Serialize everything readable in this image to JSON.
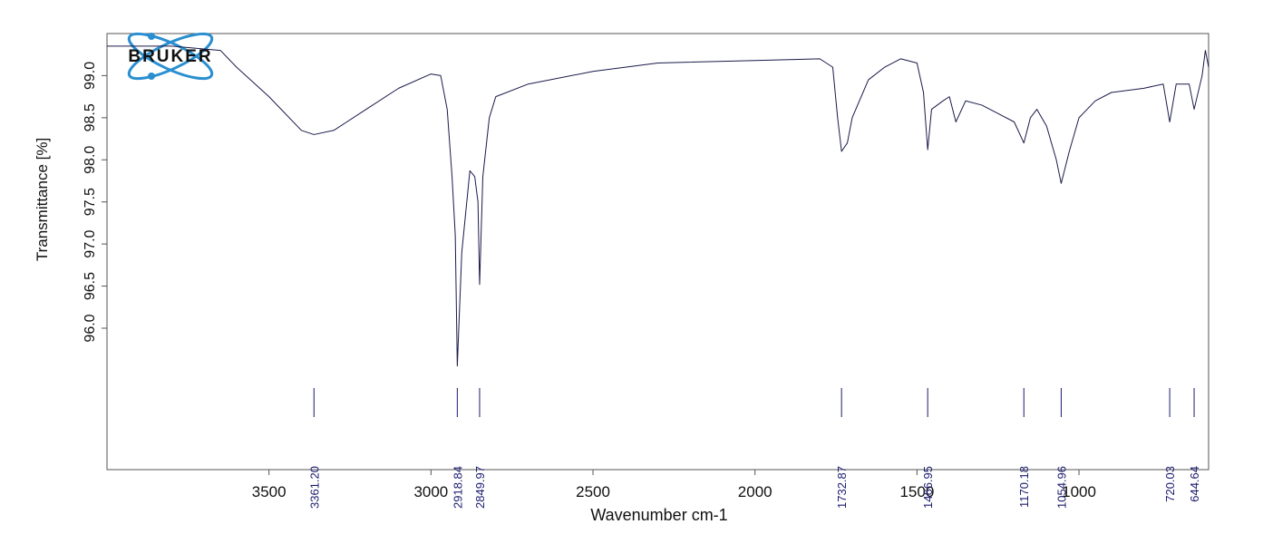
{
  "chart_data": {
    "type": "line",
    "logo": "BRUKER",
    "xlabel": "Wavenumber cm-1",
    "ylabel": "Transmittance [%]",
    "xlim": [
      4000,
      600
    ],
    "xticks": [
      3500,
      3000,
      2500,
      2000,
      1500,
      1000
    ],
    "ylim": [
      94.32,
      99.5
    ],
    "yticks": [
      {
        "value": 96,
        "label": "96.0"
      },
      {
        "value": 96.5,
        "label": "96.5"
      },
      {
        "value": 97,
        "label": "97.0"
      },
      {
        "value": 97.5,
        "label": "97.5"
      },
      {
        "value": 98,
        "label": "98.0"
      },
      {
        "value": 98.5,
        "label": "98.5"
      },
      {
        "value": 99,
        "label": "99.0"
      }
    ],
    "x": [
      4000,
      3800,
      3650,
      3600,
      3500,
      3400,
      3361.2,
      3300,
      3200,
      3100,
      3000,
      2970,
      2950,
      2935,
      2925,
      2918.84,
      2905,
      2880,
      2865,
      2855,
      2849.97,
      2840,
      2820,
      2800,
      2700,
      2500,
      2300,
      2000,
      1800,
      1760,
      1745,
      1732.87,
      1715,
      1700,
      1650,
      1600,
      1550,
      1500,
      1480,
      1466.95,
      1455,
      1420,
      1400,
      1380,
      1350,
      1300,
      1250,
      1200,
      1170.18,
      1150,
      1130,
      1100,
      1070,
      1054.96,
      1030,
      1000,
      950,
      900,
      800,
      740,
      720.03,
      700,
      660,
      644.64,
      620,
      610,
      600
    ],
    "series": [
      {
        "color": "#1a1a4a",
        "values": [
          99.35,
          99.35,
          99.3,
          99.1,
          98.75,
          98.35,
          98.3,
          98.35,
          98.6,
          98.85,
          99.02,
          99.0,
          98.6,
          97.8,
          97.1,
          95.55,
          96.9,
          97.87,
          97.8,
          97.5,
          96.52,
          97.8,
          98.5,
          98.75,
          98.9,
          99.05,
          99.15,
          99.18,
          99.2,
          99.1,
          98.5,
          98.1,
          98.2,
          98.5,
          98.95,
          99.1,
          99.2,
          99.15,
          98.8,
          98.12,
          98.6,
          98.7,
          98.75,
          98.45,
          98.7,
          98.65,
          98.55,
          98.45,
          98.2,
          98.5,
          98.6,
          98.4,
          98.0,
          97.72,
          98.1,
          98.5,
          98.7,
          98.8,
          98.85,
          98.9,
          98.45,
          98.9,
          98.9,
          98.6,
          99.0,
          99.3,
          99.1
        ]
      }
    ],
    "peak_color": "#1a1a6e",
    "peaks": [
      {
        "value": 3361.2,
        "label": "3361.20"
      },
      {
        "value": 2918.84,
        "label": "2918.84"
      },
      {
        "value": 2849.97,
        "label": "2849.97"
      },
      {
        "value": 1732.87,
        "label": "1732.87"
      },
      {
        "value": 1466.95,
        "label": "1466.95"
      },
      {
        "value": 1170.18,
        "label": "1170.18"
      },
      {
        "value": 1054.96,
        "label": "1054.96"
      },
      {
        "value": 720.03,
        "label": "720.03"
      },
      {
        "value": 644.64,
        "label": "644.64"
      }
    ]
  }
}
